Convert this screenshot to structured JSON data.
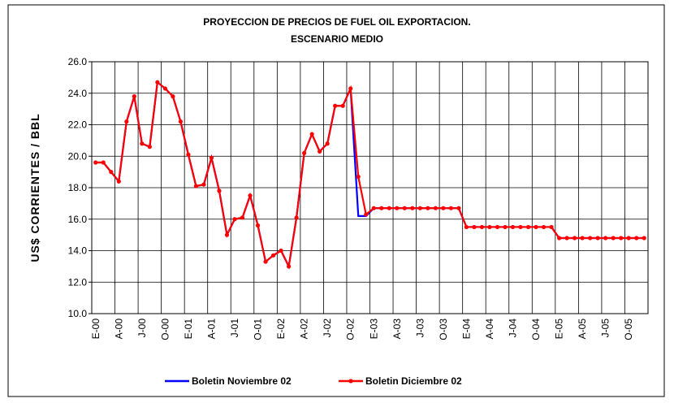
{
  "chart_data": {
    "type": "line",
    "title": "PROYECCION DE PRECIOS DE FUEL OIL EXPORTACION.",
    "subtitle": "ESCENARIO MEDIO",
    "y_label": "US$ CORRIENTES / BBL",
    "categories": [
      "E-00",
      null,
      null,
      "A-00",
      null,
      null,
      "J-00",
      null,
      null,
      "O-00",
      null,
      null,
      "E-01",
      null,
      null,
      "A-01",
      null,
      null,
      "J-01",
      null,
      null,
      "O-01",
      null,
      null,
      "E-02",
      null,
      null,
      "A-02",
      null,
      null,
      "J-02",
      null,
      null,
      "O-02",
      null,
      null,
      "E-03",
      null,
      null,
      "A-03",
      null,
      null,
      "J-03",
      null,
      null,
      "O-03",
      null,
      null,
      "E-04",
      null,
      null,
      "A-04",
      null,
      null,
      "J-04",
      null,
      null,
      "O-04",
      null,
      null,
      "E-05",
      null,
      null,
      "A-05",
      null,
      null,
      "J-05",
      null,
      null,
      "O-05",
      null,
      null
    ],
    "series": [
      {
        "name": "Boletin Noviembre 02",
        "color": "#0000ff",
        "marker": false,
        "values": [
          19.6,
          19.6,
          19.0,
          18.4,
          22.2,
          23.8,
          20.8,
          20.6,
          24.7,
          24.3,
          23.8,
          22.2,
          20.1,
          18.1,
          18.2,
          19.9,
          17.8,
          15.0,
          16.0,
          16.1,
          17.5,
          15.6,
          13.3,
          13.7,
          14.0,
          13.0,
          16.1,
          20.2,
          21.4,
          20.3,
          20.8,
          23.2,
          23.2,
          24.3,
          16.2,
          16.2,
          16.7,
          16.7,
          16.7,
          16.7,
          16.7,
          16.7,
          16.7,
          16.7,
          16.7,
          16.7,
          16.7,
          16.7,
          15.5,
          15.5,
          15.5,
          15.5,
          15.5,
          15.5,
          15.5,
          15.5,
          15.5,
          15.5,
          15.5,
          15.5,
          14.8,
          14.8,
          14.8,
          14.8,
          14.8,
          14.8,
          14.8,
          14.8,
          14.8,
          14.8,
          14.8,
          14.8
        ]
      },
      {
        "name": "Boletin Diciembre 02",
        "color": "#ff0000",
        "marker": true,
        "values": [
          19.6,
          19.6,
          19.0,
          18.4,
          22.2,
          23.8,
          20.8,
          20.6,
          24.7,
          24.3,
          23.8,
          22.2,
          20.1,
          18.1,
          18.2,
          19.9,
          17.8,
          15.0,
          16.0,
          16.1,
          17.5,
          15.6,
          13.3,
          13.7,
          14.0,
          13.0,
          16.1,
          20.2,
          21.4,
          20.3,
          20.8,
          23.2,
          23.2,
          24.3,
          18.7,
          16.3,
          16.7,
          16.7,
          16.7,
          16.7,
          16.7,
          16.7,
          16.7,
          16.7,
          16.7,
          16.7,
          16.7,
          16.7,
          15.5,
          15.5,
          15.5,
          15.5,
          15.5,
          15.5,
          15.5,
          15.5,
          15.5,
          15.5,
          15.5,
          15.5,
          14.8,
          14.8,
          14.8,
          14.8,
          14.8,
          14.8,
          14.8,
          14.8,
          14.8,
          14.8,
          14.8,
          14.8
        ]
      }
    ],
    "ylim": [
      10,
      26
    ],
    "yticks": [
      {
        "value": 10,
        "label": "10.0"
      },
      {
        "value": 12,
        "label": "12.0"
      },
      {
        "value": 14,
        "label": "14.0"
      },
      {
        "value": 16,
        "label": "16.0"
      },
      {
        "value": 18,
        "label": "18.0"
      },
      {
        "value": 20,
        "label": "20.0"
      },
      {
        "value": 22,
        "label": "22.0"
      },
      {
        "value": 24,
        "label": "24.0"
      },
      {
        "value": 26,
        "label": "26.0"
      }
    ],
    "grid": true,
    "legend": "bottom"
  }
}
